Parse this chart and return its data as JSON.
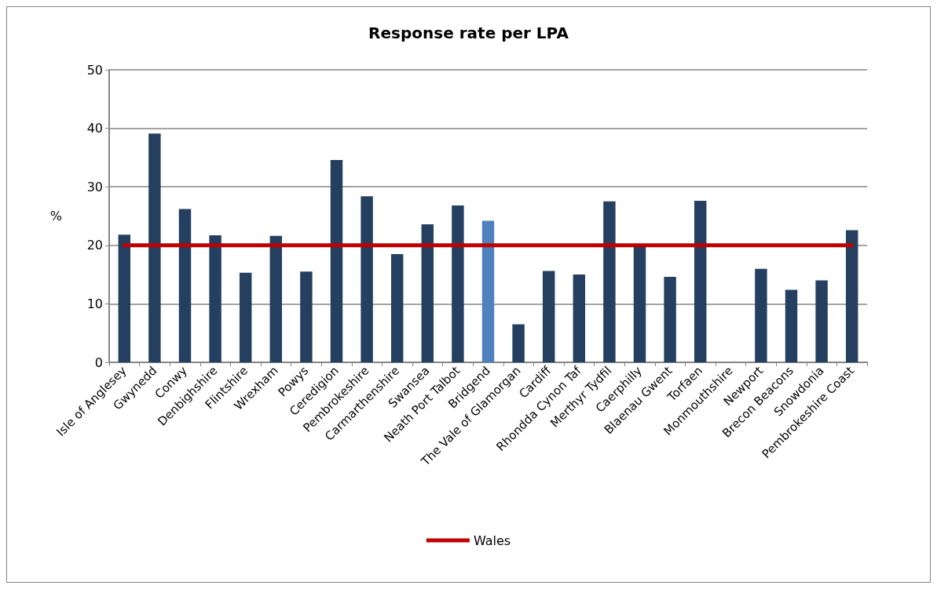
{
  "chart_data": {
    "type": "bar",
    "title": "Response rate per LPA",
    "ylabel": "%",
    "categories": [
      "Isle of Anglesey",
      "Gwynedd",
      "Conwy",
      "Denbighshire",
      "Flintshire",
      "Wrexham",
      "Powys",
      "Ceredigion",
      "Pembrokeshire",
      "Carmarthenshire",
      "Swansea",
      "Neath Port Talbot",
      "Bridgend",
      "The Vale of Glamorgan",
      "Cardiff",
      "Rhondda Cynon Taf",
      "Merthyr Tydfil",
      "Caerphilly",
      "Blaenau Gwent",
      "Torfaen",
      "Monmouthshire",
      "Newport",
      "Brecon Beacons",
      "Snowdonia",
      "Pembrokeshire Coast"
    ],
    "series": [
      {
        "values": [
          21.8,
          39.1,
          26.2,
          21.7,
          15.3,
          21.6,
          15.5,
          34.6,
          28.4,
          18.5,
          23.6,
          26.8,
          24.2,
          6.5,
          15.6,
          15.0,
          27.5,
          19.7,
          14.6,
          27.6,
          null,
          16.0,
          12.4,
          14.0,
          22.6
        ],
        "colors": [
          "#243f60",
          "#243f60",
          "#243f60",
          "#243f60",
          "#243f60",
          "#243f60",
          "#243f60",
          "#243f60",
          "#243f60",
          "#243f60",
          "#243f60",
          "#243f60",
          "#4f81bd",
          "#243f60",
          "#243f60",
          "#243f60",
          "#243f60",
          "#243f60",
          "#243f60",
          "#243f60",
          "#243f60",
          "#243f60",
          "#243f60",
          "#243f60",
          "#243f60"
        ]
      },
      {
        "type": "line",
        "name": "Wales",
        "color": "#c00000",
        "values": [
          20,
          20,
          20,
          20,
          20,
          20,
          20,
          20,
          20,
          20,
          20,
          20,
          20,
          20,
          20,
          20,
          20,
          20,
          20,
          20,
          20,
          20,
          20,
          20,
          20
        ]
      }
    ],
    "ylim": [
      0,
      50
    ],
    "yticks": [
      0,
      10,
      20,
      30,
      40,
      50
    ],
    "grid": "y",
    "legend": "bottom",
    "marker": "none"
  }
}
